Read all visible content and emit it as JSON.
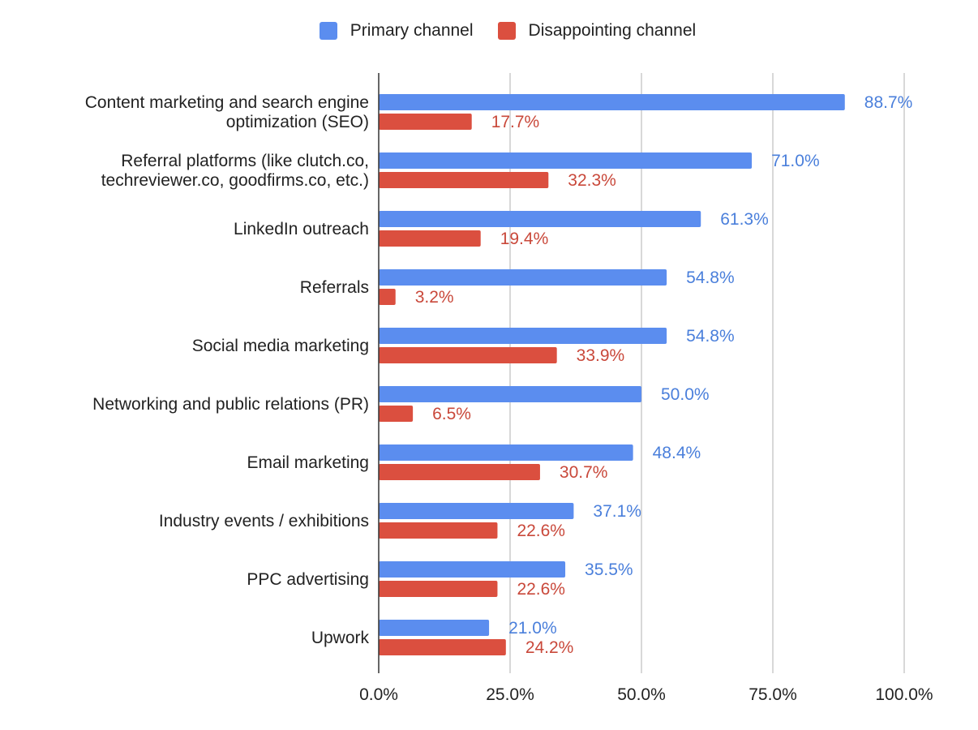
{
  "chart_data": {
    "type": "bar",
    "orientation": "horizontal",
    "categories": [
      "Content marketing and search engine optimization (SEO)",
      "Referral platforms (like clutch.co, techreviewer.co, goodfirms.co, etc.)",
      "LinkedIn outreach",
      "Referrals",
      "Social media marketing",
      "Networking and public relations (PR)",
      "Email marketing",
      "Industry events / exhibitions",
      "PPC advertising",
      "Upwork"
    ],
    "category_lines": [
      [
        "Content marketing and search engine",
        "optimization (SEO)"
      ],
      [
        "Referral platforms (like clutch.co,",
        "techreviewer.co, goodfirms.co, etc.)"
      ],
      [
        "LinkedIn outreach"
      ],
      [
        "Referrals"
      ],
      [
        "Social media marketing"
      ],
      [
        "Networking and public relations (PR)"
      ],
      [
        "Email marketing"
      ],
      [
        "Industry events / exhibitions"
      ],
      [
        "PPC advertising"
      ],
      [
        "Upwork"
      ]
    ],
    "series": [
      {
        "name": "Primary channel",
        "color": "#5B8DEF",
        "label_color": "#4A7FDB",
        "values": [
          88.7,
          71.0,
          61.3,
          54.8,
          54.8,
          50.0,
          48.4,
          37.1,
          35.5,
          21.0
        ],
        "labels": [
          "88.7%",
          "71.0%",
          "61.3%",
          "54.8%",
          "54.8%",
          "50.0%",
          "48.4%",
          "37.1%",
          "35.5%",
          "21.0%"
        ]
      },
      {
        "name": "Disappointing channel",
        "color": "#DB4F3F",
        "label_color": "#C9483A",
        "values": [
          17.7,
          32.3,
          19.4,
          3.2,
          33.9,
          6.5,
          30.7,
          22.6,
          22.6,
          24.2
        ],
        "labels": [
          "17.7%",
          "32.3%",
          "19.4%",
          "3.2%",
          "33.9%",
          "6.5%",
          "30.7%",
          "22.6%",
          "22.6%",
          "24.2%"
        ]
      }
    ],
    "xlim": [
      0,
      100
    ],
    "xticks": [
      0,
      25,
      50,
      75,
      100
    ],
    "xtick_labels": [
      "0.0%",
      "25.0%",
      "50.0%",
      "75.0%",
      "100.0%"
    ],
    "grid": true,
    "legend_position": "top-center",
    "title": "",
    "xlabel": "",
    "ylabel": ""
  }
}
